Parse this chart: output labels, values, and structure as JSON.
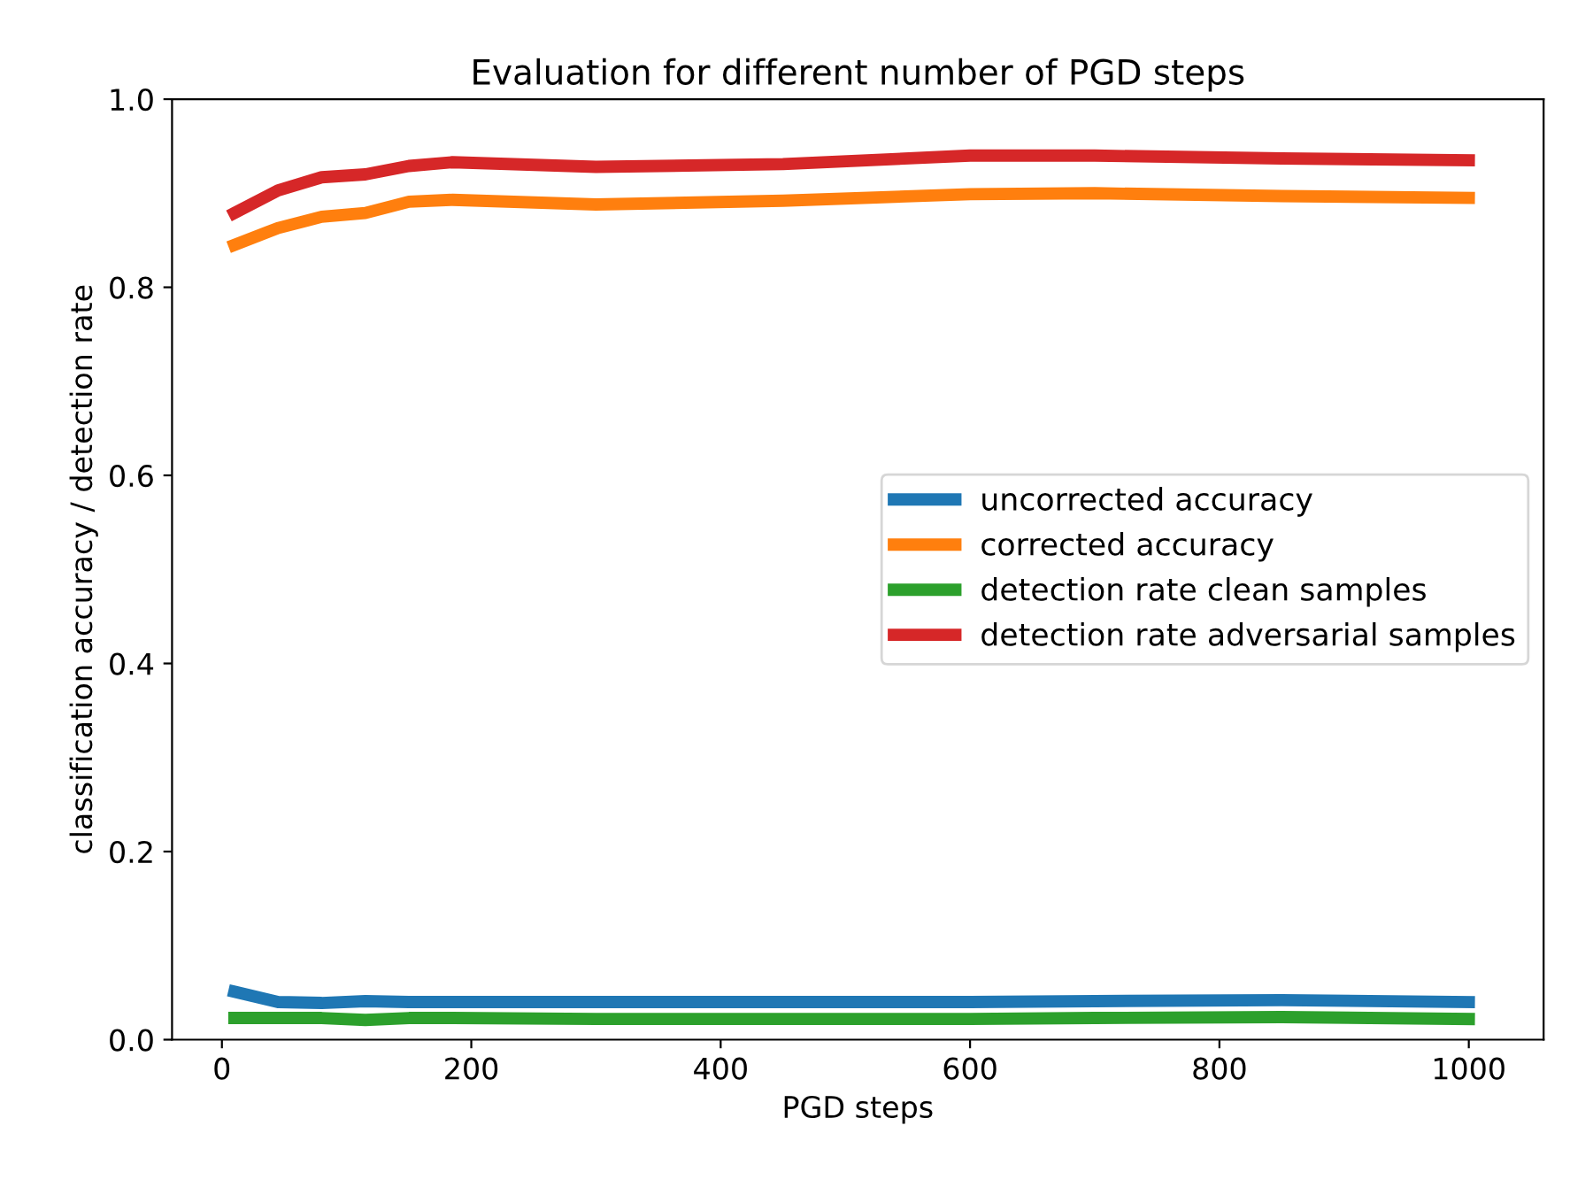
{
  "chart_data": {
    "type": "line",
    "title": "Evaluation for different number of PGD steps",
    "xlabel": "PGD steps",
    "ylabel": "classification accuracy / detection rate",
    "x": [
      10,
      45,
      80,
      115,
      150,
      185,
      300,
      450,
      600,
      700,
      850,
      1000
    ],
    "series": [
      {
        "name": "uncorrected accuracy",
        "color": "#1f77b4",
        "values": [
          0.051,
          0.04,
          0.039,
          0.041,
          0.04,
          0.04,
          0.04,
          0.04,
          0.04,
          0.041,
          0.042,
          0.04
        ]
      },
      {
        "name": "corrected accuracy",
        "color": "#ff7f0e",
        "values": [
          0.845,
          0.863,
          0.875,
          0.879,
          0.891,
          0.893,
          0.888,
          0.892,
          0.899,
          0.9,
          0.897,
          0.895
        ]
      },
      {
        "name": "detection rate clean samples",
        "color": "#2ca02c",
        "values": [
          0.023,
          0.023,
          0.023,
          0.021,
          0.023,
          0.023,
          0.022,
          0.022,
          0.022,
          0.023,
          0.024,
          0.022
        ]
      },
      {
        "name": "detection rate adversarial samples",
        "color": "#d62728",
        "values": [
          0.879,
          0.903,
          0.917,
          0.92,
          0.929,
          0.933,
          0.928,
          0.931,
          0.94,
          0.94,
          0.937,
          0.935
        ]
      }
    ],
    "xlim": [
      -40,
      1060
    ],
    "ylim": [
      0.0,
      1.0
    ],
    "xticks": [
      0,
      200,
      400,
      600,
      800,
      1000
    ],
    "yticks": [
      {
        "value": 0,
        "label": "0.0"
      },
      {
        "value": 0.2,
        "label": "0.2"
      },
      {
        "value": 0.4,
        "label": "0.4"
      },
      {
        "value": 0.6,
        "label": "0.6"
      },
      {
        "value": 0.8,
        "label": "0.8"
      },
      {
        "value": 1.0,
        "label": "1.0"
      }
    ],
    "grid": false,
    "legend": "right",
    "marker": "none",
    "line_style": "solid"
  }
}
